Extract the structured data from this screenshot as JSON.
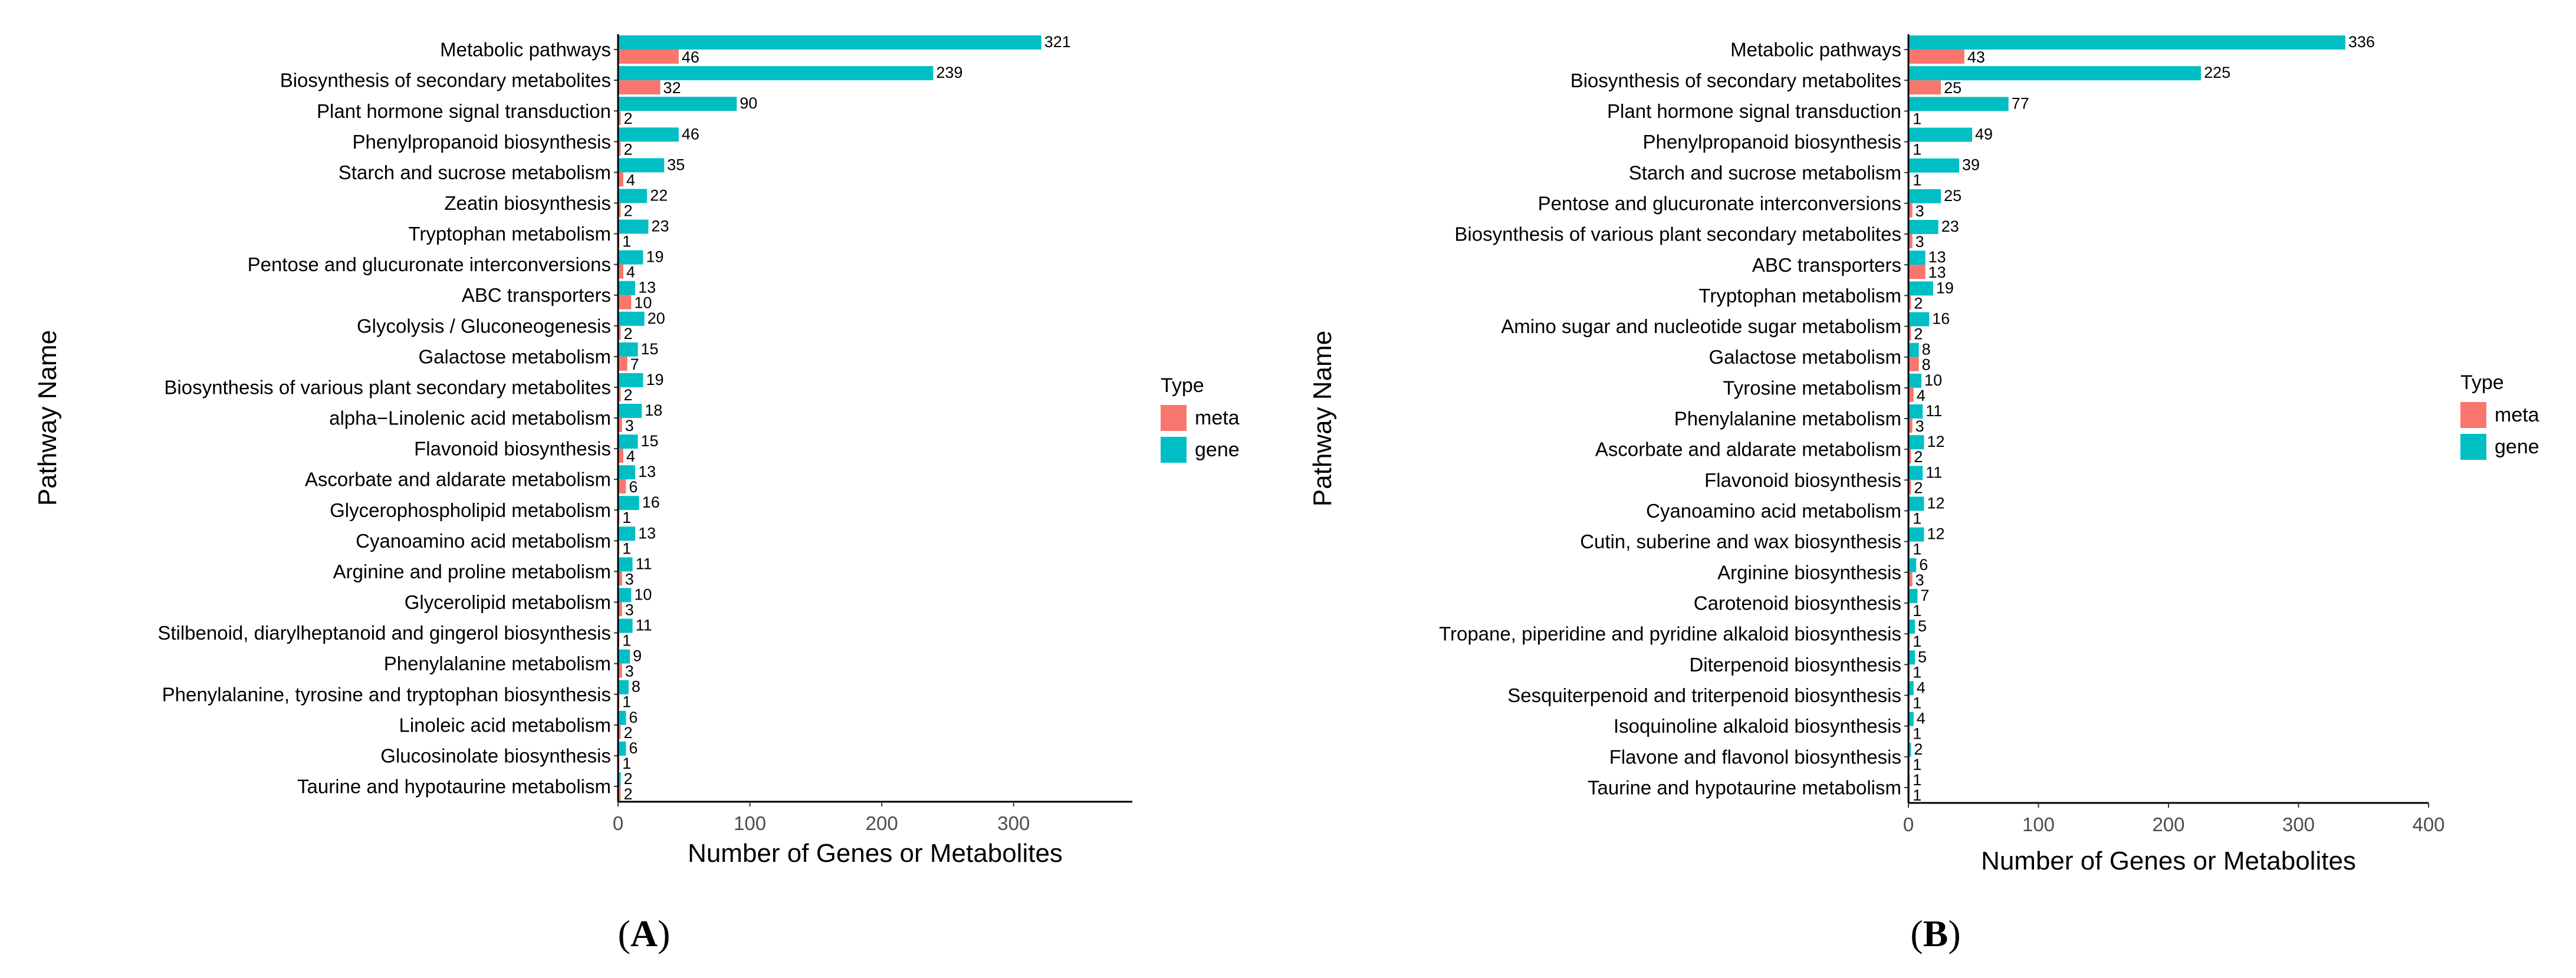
{
  "chart_data": [
    {
      "type": "bar",
      "panel_label": "(A)",
      "panel_letter": "A",
      "xlabel": "Number of Genes or Metabolites",
      "ylabel": "Pathway Name",
      "xlim": [
        0,
        390
      ],
      "xticks": [
        0,
        100,
        200,
        300
      ],
      "legend": {
        "title": "Type",
        "items": [
          {
            "label": "meta",
            "color": "#F8766D"
          },
          {
            "label": "gene",
            "color": "#00BFC4"
          }
        ],
        "position": "right"
      },
      "colors": {
        "meta": "#F8766D",
        "gene": "#00BFC4"
      },
      "categories": [
        "Metabolic pathways",
        "Biosynthesis of secondary metabolites",
        "Plant hormone signal transduction",
        "Phenylpropanoid biosynthesis",
        "Starch and sucrose metabolism",
        "Zeatin biosynthesis",
        "Tryptophan metabolism",
        "Pentose and glucuronate interconversions",
        "ABC transporters",
        "Glycolysis / Gluconeogenesis",
        "Galactose metabolism",
        "Biosynthesis of various plant secondary metabolites",
        "alpha−Linolenic acid metabolism",
        "Flavonoid biosynthesis",
        "Ascorbate and aldarate metabolism",
        "Glycerophospholipid metabolism",
        "Cyanoamino acid metabolism",
        "Arginine and proline metabolism",
        "Glycerolipid metabolism",
        "Stilbenoid, diarylheptanoid and gingerol biosynthesis",
        "Phenylalanine metabolism",
        "Phenylalanine, tyrosine and tryptophan biosynthesis",
        "Linoleic acid metabolism",
        "Glucosinolate biosynthesis",
        "Taurine and hypotaurine metabolism"
      ],
      "series": [
        {
          "name": "gene",
          "values": [
            321,
            239,
            90,
            46,
            35,
            22,
            23,
            19,
            13,
            20,
            15,
            19,
            18,
            15,
            13,
            16,
            13,
            11,
            10,
            11,
            9,
            8,
            6,
            6,
            2
          ]
        },
        {
          "name": "meta",
          "values": [
            46,
            32,
            2,
            2,
            4,
            2,
            1,
            4,
            10,
            2,
            7,
            2,
            3,
            4,
            6,
            1,
            1,
            3,
            3,
            1,
            3,
            1,
            2,
            1,
            2
          ]
        }
      ]
    },
    {
      "type": "bar",
      "panel_label": "(B)",
      "panel_letter": "B",
      "xlabel": "Number of Genes or Metabolites",
      "ylabel": "Pathway Name",
      "xlim": [
        0,
        400
      ],
      "xticks": [
        0,
        100,
        200,
        300,
        400
      ],
      "legend": {
        "title": "Type",
        "items": [
          {
            "label": "meta",
            "color": "#F8766D"
          },
          {
            "label": "gene",
            "color": "#00BFC4"
          }
        ],
        "position": "right"
      },
      "colors": {
        "meta": "#F8766D",
        "gene": "#00BFC4"
      },
      "categories": [
        "Metabolic pathways",
        "Biosynthesis of secondary metabolites",
        "Plant hormone signal transduction",
        "Phenylpropanoid biosynthesis",
        "Starch and sucrose metabolism",
        "Pentose and glucuronate interconversions",
        "Biosynthesis of various plant secondary metabolites",
        "ABC transporters",
        "Tryptophan metabolism",
        "Amino sugar and nucleotide sugar metabolism",
        "Galactose metabolism",
        "Tyrosine metabolism",
        "Phenylalanine metabolism",
        "Ascorbate and aldarate metabolism",
        "Flavonoid biosynthesis",
        "Cyanoamino acid metabolism",
        "Cutin, suberine and wax biosynthesis",
        "Arginine biosynthesis",
        "Carotenoid biosynthesis",
        "Tropane, piperidine and pyridine alkaloid biosynthesis",
        "Diterpenoid biosynthesis",
        "Sesquiterpenoid and triterpenoid biosynthesis",
        "Isoquinoline alkaloid biosynthesis",
        "Flavone and flavonol biosynthesis",
        "Taurine and hypotaurine metabolism"
      ],
      "series": [
        {
          "name": "gene",
          "values": [
            336,
            225,
            77,
            49,
            39,
            25,
            23,
            13,
            19,
            16,
            8,
            10,
            11,
            12,
            11,
            12,
            12,
            6,
            7,
            5,
            5,
            4,
            4,
            2,
            1
          ]
        },
        {
          "name": "meta",
          "values": [
            43,
            25,
            1,
            1,
            1,
            3,
            3,
            13,
            2,
            2,
            8,
            4,
            3,
            2,
            2,
            1,
            1,
            3,
            1,
            1,
            1,
            1,
            1,
            1,
            1
          ]
        }
      ]
    }
  ]
}
